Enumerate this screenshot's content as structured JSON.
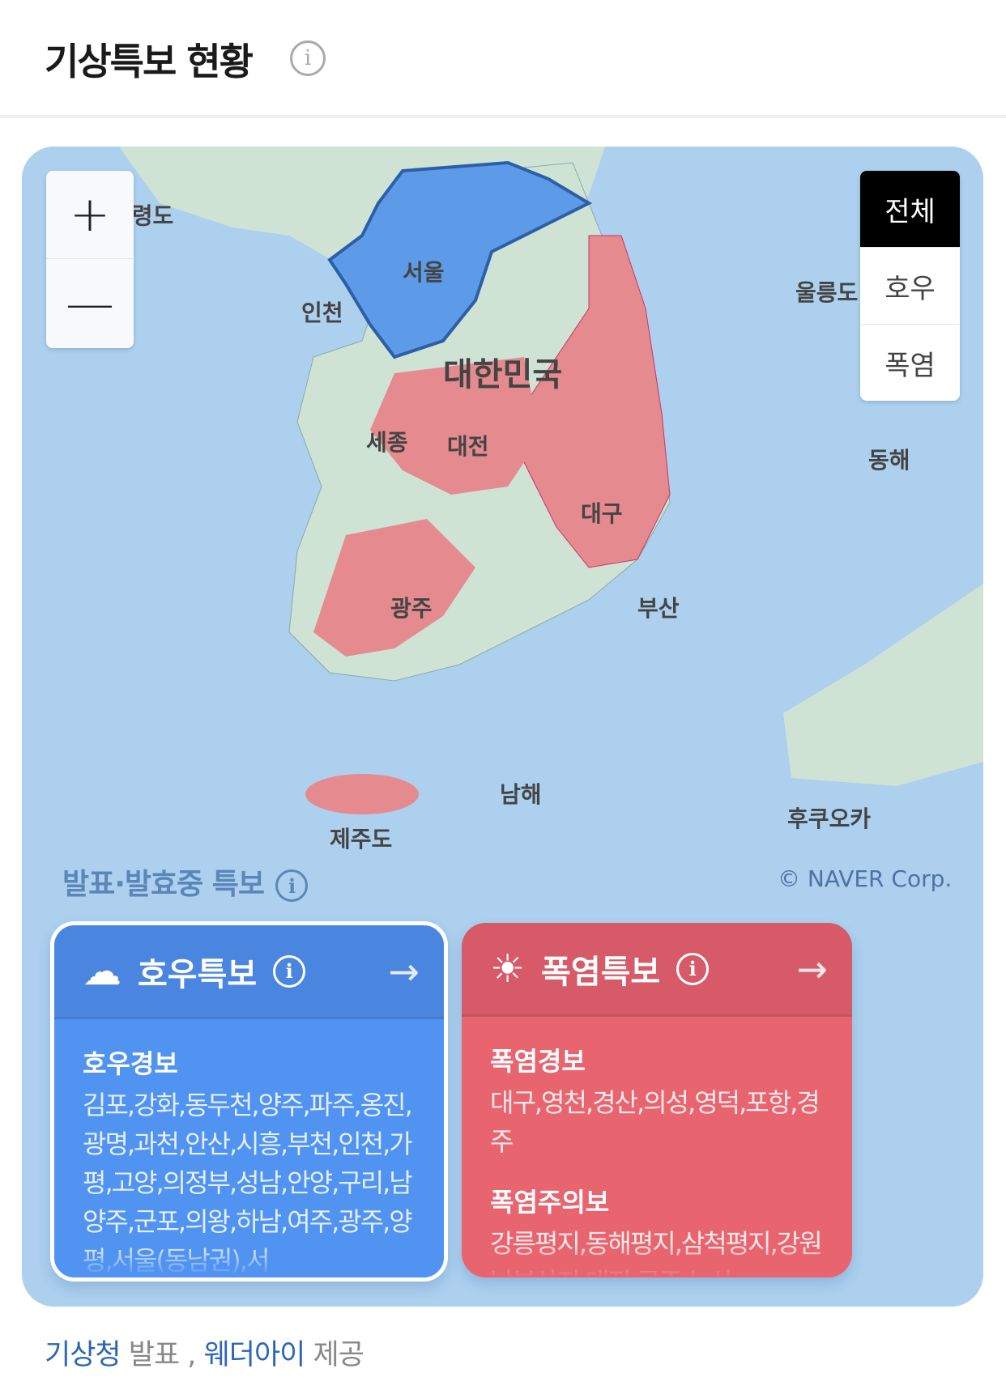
{
  "header": {
    "title": "기상특보 현황",
    "info_icon": "info-icon"
  },
  "map": {
    "zoom_in": "+",
    "zoom_out": "—",
    "labels": [
      "백령도",
      "서울",
      "인천",
      "대한민국",
      "세종",
      "대전",
      "대구",
      "광주",
      "부산",
      "울릉도",
      "동해",
      "남해",
      "후쿠오카",
      "제주도"
    ],
    "legend": [
      {
        "label": "전체",
        "active": true
      },
      {
        "label": "호우",
        "active": false
      },
      {
        "label": "폭염",
        "active": false
      }
    ],
    "colors": {
      "sea": "#acd0ee",
      "land": "#cfe3d4",
      "rain": "#5d9be8",
      "heat": "#e58a8e"
    }
  },
  "section": {
    "title": "발표·발효중 특보",
    "copyright": "© NAVER Corp."
  },
  "cards": [
    {
      "title": "호우특보",
      "icon": "rain-cloud-icon",
      "color": "#5093f0",
      "groups": [
        {
          "level": "호우경보",
          "regions": "김포,강화,동두천,양주,파주,옹진,광명,과천,안산,시흥,부천,인천,가평,고양,의정부,성남,안양,구리,남양주,군포,의왕,하남,여주,광주,양평,서울(동남권),서"
        }
      ]
    },
    {
      "title": "폭염특보",
      "icon": "sun-icon",
      "color": "#e86570",
      "groups": [
        {
          "level": "폭염경보",
          "regions": "대구,영천,경산,의성,영덕,포항,경주"
        },
        {
          "level": "폭염주의보",
          "regions": "강릉평지,동해평지,삼척평지,강원남부산지,대전,공주,논산"
        }
      ]
    }
  ],
  "footer": {
    "source": "기상청",
    "source_suffix": "발표",
    "separator": ",",
    "provider": "웨더아이",
    "provider_suffix": "제공"
  }
}
